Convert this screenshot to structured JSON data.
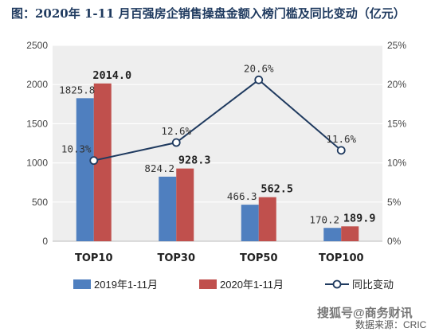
{
  "chart_data": {
    "type": "bar",
    "title": "图：2020年 1-11 月百强房企销售操盘金额入榜门槛及同比变动（亿元）",
    "categories": [
      "TOP10",
      "TOP30",
      "TOP50",
      "TOP100"
    ],
    "series": [
      {
        "name": "2019年1-11月",
        "type": "bar",
        "axis": "left",
        "color": "#4f7fbf",
        "values": [
          1825.8,
          824.2,
          466.3,
          170.2
        ],
        "labels": [
          "1825.8",
          "824.2",
          "466.3",
          "170.2"
        ]
      },
      {
        "name": "2020年1-11月",
        "type": "bar",
        "axis": "left",
        "color": "#c0504d",
        "values": [
          2014.0,
          928.3,
          562.5,
          189.9
        ],
        "labels": [
          "2014.0",
          "928.3",
          "562.5",
          "189.9"
        ]
      },
      {
        "name": "同比变动",
        "type": "line",
        "axis": "right",
        "color": "#1f3a5f",
        "values": [
          10.3,
          12.6,
          20.6,
          11.6
        ],
        "labels": [
          "10.3%",
          "12.6%",
          "20.6%",
          "11.6%"
        ]
      }
    ],
    "y_left": {
      "min": 0,
      "max": 2500,
      "ticks": [
        "0",
        "500",
        "1000",
        "1500",
        "2000",
        "2500"
      ]
    },
    "y_right": {
      "min": 0,
      "max": 25,
      "ticks": [
        "0%",
        "5%",
        "10%",
        "15%",
        "20%",
        "25%"
      ]
    },
    "legend_position": "bottom",
    "grid": true
  },
  "watermark": "搜狐号@商务财讯",
  "source": "数据来源：CRIC"
}
